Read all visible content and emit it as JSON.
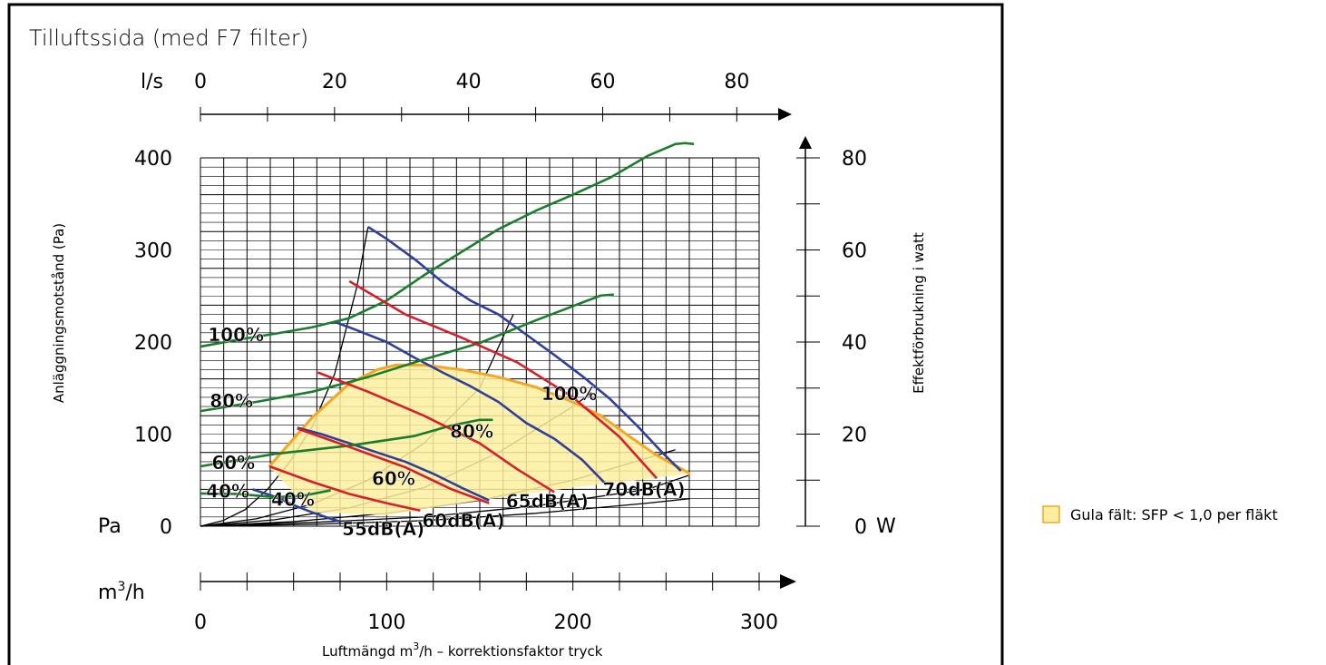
{
  "chart_data": {
    "type": "line",
    "title": "Tilluftssida (med F7 filter)",
    "xlabel": "Luftmängd m3/h – korrektionsfaktor tryck",
    "xlabel_parts": {
      "pre": "Luftmängd m",
      "sup": "3",
      "post": "/h – korrektionsfaktor tryck"
    },
    "ylabel": "Anläggningsmotstånd (Pa)",
    "y2label": "Effektförbrukning i watt",
    "x_unit": {
      "pre": "m",
      "sup": "3",
      "post": "/h"
    },
    "top_unit": "l/s",
    "y_unit": "Pa",
    "y2_unit": "W",
    "xlim": [
      0,
      300
    ],
    "ylim": [
      0,
      400
    ],
    "y2lim": [
      0,
      80
    ],
    "top_lim": [
      0,
      83.3
    ],
    "grid": true,
    "x_ticks": [
      0,
      100,
      200,
      300
    ],
    "y_ticks": [
      0,
      100,
      200,
      300,
      400
    ],
    "y2_ticks": [
      0,
      20,
      40,
      60,
      80
    ],
    "top_ticks": [
      0,
      20,
      40,
      60,
      80
    ],
    "series": [
      {
        "group": "pressure",
        "label": "100%",
        "color": "#2e3f9c",
        "x": [
          90,
          100,
          115,
          130,
          145,
          160,
          175,
          190,
          205,
          220,
          235,
          248,
          258
        ],
        "y": [
          325,
          312,
          290,
          265,
          245,
          230,
          208,
          186,
          163,
          138,
          108,
          80,
          60
        ]
      },
      {
        "group": "pressure",
        "label": "80%",
        "color": "#2e3f9c",
        "x": [
          72,
          85,
          100,
          115,
          130,
          145,
          160,
          175,
          190,
          205,
          218
        ],
        "y": [
          222,
          212,
          200,
          183,
          167,
          152,
          135,
          112,
          95,
          72,
          45
        ]
      },
      {
        "group": "pressure",
        "label": "60%",
        "color": "#2e3f9c",
        "x": [
          52,
          65,
          80,
          95,
          110,
          125,
          140,
          155
        ],
        "y": [
          107,
          100,
          90,
          80,
          70,
          57,
          42,
          28
        ]
      },
      {
        "group": "pressure",
        "label": "40%",
        "color": "#2e3f9c",
        "x": [
          28,
          40,
          50,
          60,
          70,
          75
        ],
        "y": [
          40,
          32,
          23,
          15,
          8,
          5
        ]
      },
      {
        "group": "power",
        "label": "100%",
        "color": "#1a7d2c",
        "x": [
          0,
          20,
          40,
          60,
          80,
          100,
          120,
          140,
          160,
          180,
          200,
          220,
          240,
          255,
          260,
          265
        ],
        "y": [
          39,
          40.5,
          41.8,
          43.2,
          45.2,
          49,
          54.5,
          59.5,
          64.5,
          68.5,
          72,
          75.7,
          80.4,
          83,
          83.2,
          83
        ]
      },
      {
        "group": "power",
        "label": "80%",
        "color": "#1a7d2c",
        "x": [
          0,
          30,
          60,
          90,
          120,
          150,
          180,
          200,
          215,
          222
        ],
        "y": [
          25,
          27,
          29.2,
          32.4,
          36.2,
          39.8,
          44.7,
          47.8,
          50.1,
          50.3
        ]
      },
      {
        "group": "power",
        "label": "60%",
        "color": "#1a7d2c",
        "x": [
          0,
          40,
          80,
          115,
          135,
          150,
          157
        ],
        "y": [
          13,
          15.7,
          17.5,
          19.6,
          21.9,
          23.1,
          23.1
        ]
      },
      {
        "group": "power",
        "label": "40%",
        "color": "#1a7d2c",
        "x": [
          0,
          20,
          40,
          55,
          65,
          70
        ],
        "y": [
          7.1,
          7,
          6.3,
          6.6,
          7.4,
          7.8
        ]
      },
      {
        "group": "sound",
        "label": "55dB(A)",
        "color": "#d81e2a",
        "x": [
          37,
          60,
          80,
          100,
          118
        ],
        "y": [
          65,
          48,
          35,
          25,
          17
        ]
      },
      {
        "group": "sound",
        "label": "60dB(A)",
        "color": "#d81e2a",
        "x": [
          52,
          80,
          110,
          135,
          155
        ],
        "y": [
          106,
          86,
          64,
          40,
          25
        ]
      },
      {
        "group": "sound",
        "label": "65dB(A)",
        "color": "#d81e2a",
        "x": [
          63,
          90,
          120,
          150,
          170,
          190
        ],
        "y": [
          167,
          146,
          120,
          90,
          62,
          37
        ]
      },
      {
        "group": "sound",
        "label": "70dB(A)",
        "color": "#d81e2a",
        "x": [
          80,
          110,
          140,
          170,
          200,
          225,
          245
        ],
        "y": [
          266,
          230,
          205,
          178,
          140,
          97,
          52
        ]
      },
      {
        "group": "system",
        "color": "#000000",
        "x": [
          0,
          12,
          24,
          36,
          48,
          60,
          72,
          84,
          90
        ],
        "y": [
          0,
          6,
          18,
          40,
          70,
          108,
          165,
          260,
          325
        ]
      },
      {
        "group": "system",
        "color": "#000000",
        "x": [
          0,
          30,
          60,
          90,
          120,
          150,
          168
        ],
        "y": [
          0,
          8,
          24,
          50,
          90,
          150,
          230
        ]
      },
      {
        "group": "system",
        "color": "#000000",
        "x": [
          0,
          40,
          80,
          120,
          160,
          200,
          210
        ],
        "y": [
          0,
          7,
          20,
          42,
          80,
          130,
          145
        ]
      },
      {
        "group": "system",
        "color": "#000000",
        "x": [
          0,
          50,
          100,
          150,
          200,
          255
        ],
        "y": [
          0,
          5,
          14,
          28,
          50,
          83
        ]
      },
      {
        "group": "system",
        "color": "#000000",
        "x": [
          0,
          60,
          120,
          180,
          240,
          262
        ],
        "y": [
          0,
          4,
          10,
          22,
          40,
          55
        ]
      },
      {
        "group": "system",
        "color": "#000000",
        "x": [
          0,
          60,
          120,
          180,
          240,
          263
        ],
        "y": [
          0,
          2,
          6,
          14,
          25,
          30
        ]
      }
    ],
    "sfp_region": {
      "label": "Gula fält: SFP < 1,0 per fläkt",
      "fill": "#fbee9f",
      "stroke": "#f5a623",
      "x": [
        37,
        60,
        80,
        95,
        105,
        120,
        140,
        160,
        180,
        200,
        215,
        230,
        245,
        263,
        200,
        150,
        100,
        60,
        37
      ],
      "y": [
        65,
        118,
        155,
        170,
        175,
        175,
        170,
        162,
        151,
        135,
        120,
        98,
        77,
        57,
        42,
        28,
        12,
        15,
        65
      ]
    },
    "annotations": [
      {
        "text": "100%",
        "x": 4,
        "y": 201
      },
      {
        "text": "80%",
        "x": 5,
        "y": 129
      },
      {
        "text": "60%",
        "x": 6,
        "y": 62
      },
      {
        "text": "40%",
        "x": 3,
        "y": 31
      },
      {
        "text": "40%",
        "x": 38,
        "y": 22
      },
      {
        "text": "60%",
        "x": 92,
        "y": 45
      },
      {
        "text": "80%",
        "x": 134,
        "y": 96
      },
      {
        "text": "100%",
        "x": 183,
        "y": 137
      },
      {
        "text": "55dB(A)",
        "x": 76,
        "y": -10
      },
      {
        "text": "60dB(A)",
        "x": 119,
        "y": -1
      },
      {
        "text": "65dB(A)",
        "x": 164,
        "y": 20
      },
      {
        "text": "70dB(A)",
        "x": 216,
        "y": 33
      }
    ],
    "legend_position": "right"
  }
}
